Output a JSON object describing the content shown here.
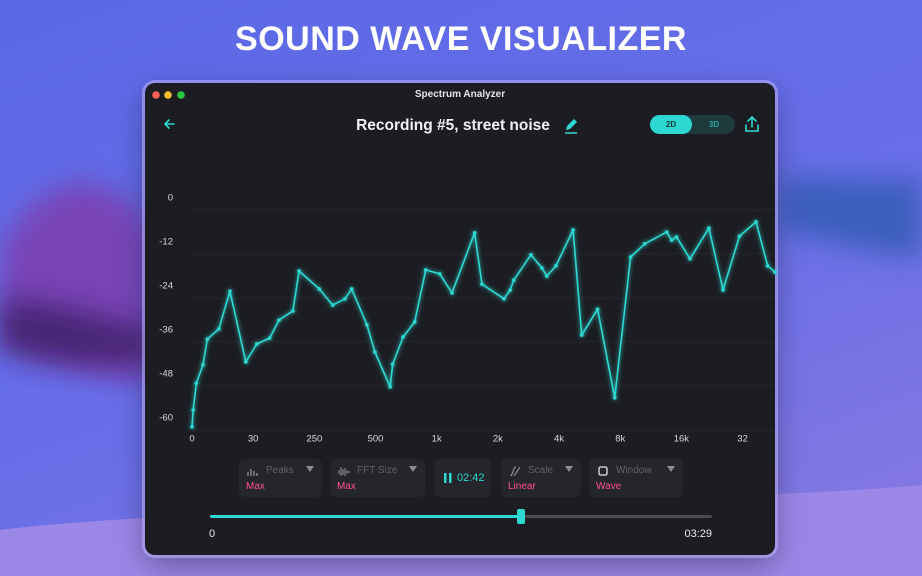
{
  "header": {
    "title": "SOUND WAVE VISUALIZER"
  },
  "window": {
    "title": "Spectrum Analyzer"
  },
  "toolbar": {
    "recording": "Recording #5, street noise",
    "modes": [
      "2D",
      "3D"
    ]
  },
  "chart_data": {
    "type": "line",
    "color": "#2ed8d2",
    "x": [
      0,
      0.02,
      0.07,
      0.18,
      0.25,
      0.44,
      0.62,
      0.88,
      1.06,
      1.27,
      1.42,
      1.65,
      1.75,
      2.08,
      2.3,
      2.5,
      2.61,
      2.86,
      2.99,
      3.24,
      3.28,
      3.45,
      3.64,
      3.82,
      4.05,
      4.25,
      4.62,
      4.74,
      5.1,
      5.2,
      5.26,
      5.54,
      5.72,
      5.8,
      5.95,
      6.23,
      6.37,
      6.63,
      6.91,
      7.17,
      7.4,
      7.76,
      7.84,
      7.92,
      8.14,
      8.45,
      8.68,
      8.95,
      9.22,
      9.41,
      9.53
    ],
    "values": [
      -62.4,
      -57.8,
      -50.5,
      -45.5,
      -38.5,
      -35.7,
      -25.4,
      -44.7,
      -39.8,
      -38.2,
      -33.3,
      -30.8,
      -19.9,
      -24.8,
      -29.2,
      -27.5,
      -24.8,
      -34.6,
      -42,
      -51.5,
      -45.3,
      -37.9,
      -33.8,
      -19.6,
      -20.7,
      -25.9,
      -9.5,
      -23.5,
      -27.5,
      -25.1,
      -22.4,
      -15.5,
      -19.1,
      -21.3,
      -18.5,
      -8.7,
      -37.4,
      -30.3,
      -54.5,
      -16.1,
      -12.5,
      -9.3,
      -11.5,
      -10.6,
      -16.6,
      -8.2,
      -25.1,
      -10.4,
      -6.5,
      -18.5,
      -20.2
    ],
    "xlim": [
      0,
      9.53
    ],
    "xticks": [
      0,
      {
        "value": 1,
        "label": "30"
      },
      {
        "value": 2,
        "label": "250"
      },
      {
        "value": 3,
        "label": "500"
      },
      {
        "value": 4,
        "label": "1k"
      },
      {
        "value": 5,
        "label": "2k"
      },
      {
        "value": 6,
        "label": "4k"
      },
      {
        "value": 7,
        "label": "8k"
      },
      {
        "value": 8,
        "label": "16k"
      },
      {
        "value": 9,
        "label": "32"
      }
    ],
    "ylim": [
      -64,
      0
    ],
    "yticks": [
      0,
      -12,
      -24,
      -36,
      -48,
      -60
    ],
    "grid": true
  },
  "controls": {
    "dropdowns": [
      {
        "label": "Peaks",
        "value": "Max"
      },
      {
        "label": "FFT Size",
        "value": "Max"
      },
      {
        "label": "Scale",
        "value": "Linear"
      },
      {
        "label": "Window",
        "value": "Wave"
      }
    ],
    "time": "02:42"
  },
  "playback": {
    "start": "0",
    "end": "03:29"
  }
}
